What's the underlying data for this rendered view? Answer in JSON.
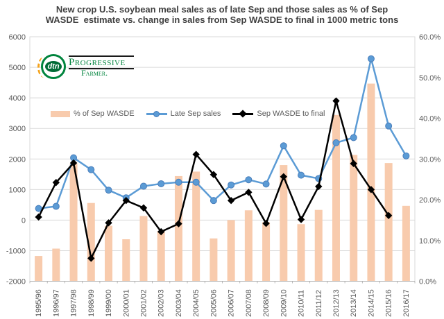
{
  "title": {
    "text": "New crop U.S. soybean meal sales as of late Sep and those sales as % of Sep WASDE  estimate vs. change in sales from Sep WASDE to final in 1000 metric tons"
  },
  "logo": {
    "circle_text": "dtn",
    "brand_top": "Progressive",
    "brand_bottom": "Farmer."
  },
  "legend": [
    {
      "label": "% of Sep WASDE",
      "swatch": "bar"
    },
    {
      "label": "Late Sep sales",
      "swatch": "line-circle"
    },
    {
      "label": "Sep WASDE to final",
      "swatch": "line-diamond"
    }
  ],
  "colors": {
    "bar": "#F8CBAD",
    "blue_line": "#5B9BD5",
    "blue_marker_edge": "#4A7EBB",
    "black_line": "#000000",
    "grid": "#D9D9D9",
    "axis_line": "#ABABAB",
    "axis_text": "#595959",
    "title_text": "#404040",
    "logo_green": "#00843D",
    "logo_orange": "#F5A31C"
  },
  "chart_data": {
    "type": "combo-bar-line",
    "title": "New crop U.S. soybean meal sales as of late Sep and those sales as % of Sep WASDE  estimate vs. change in sales from Sep WASDE to final in 1000 metric tons",
    "categories": [
      "1995/96",
      "1996/97",
      "1997/98",
      "1998/99",
      "1999/00",
      "2000/01",
      "2001/02",
      "2002/03",
      "2003/04",
      "2004/05",
      "2005/06",
      "2006/07",
      "2007/08",
      "2008/09",
      "2009/10",
      "2010/11",
      "2011/12",
      "2012/13",
      "2013/14",
      "2014/15",
      "2015/16",
      "2016/17"
    ],
    "series": [
      {
        "name": "% of Sep WASDE",
        "type": "bar",
        "axis": "right",
        "color": "#F8CBAD",
        "values": [
          6.2,
          8.0,
          28.9,
          19.2,
          13.6,
          10.3,
          16.0,
          12.3,
          25.8,
          26.9,
          10.5,
          15.0,
          17.4,
          14.5,
          28.5,
          14.0,
          17.5,
          40.8,
          31.0,
          48.5,
          29.0,
          18.5
        ]
      },
      {
        "name": "Late Sep sales",
        "type": "line",
        "marker": "circle",
        "axis": "left",
        "color": "#5B9BD5",
        "values": [
          380,
          450,
          2040,
          1650,
          980,
          730,
          1110,
          1190,
          1240,
          1240,
          640,
          1150,
          1320,
          1180,
          2430,
          1470,
          1360,
          2530,
          2700,
          5280,
          3080,
          2100
        ]
      },
      {
        "name": "Sep WASDE to final",
        "type": "line",
        "marker": "diamond",
        "axis": "left",
        "color": "#000000",
        "values": [
          100,
          1230,
          1870,
          -1250,
          -90,
          640,
          400,
          -380,
          -120,
          2150,
          1490,
          640,
          910,
          -110,
          1420,
          20,
          1100,
          3900,
          1850,
          1000,
          150,
          null
        ]
      }
    ],
    "left_axis": {
      "min": -2000,
      "max": 6000,
      "step": 1000,
      "ticks": [
        6000,
        5000,
        4000,
        3000,
        2000,
        1000,
        0,
        -1000,
        -2000
      ],
      "tick_labels": [
        "6000",
        "5000",
        "4000",
        "3000",
        "2000",
        "1000",
        "0",
        "-1000",
        "-2000"
      ]
    },
    "right_axis": {
      "min": 0,
      "max": 60,
      "step": 10,
      "ticks": [
        60,
        50,
        40,
        30,
        20,
        10,
        0
      ],
      "tick_labels": [
        "60.0%",
        "50.0%",
        "40.0%",
        "30.0%",
        "20.0%",
        "10.0%",
        "0.0%"
      ]
    },
    "grid": true,
    "legend_position": "inside-top-left",
    "x_tick_label_rotation": -90,
    "unit": "1000 metric tons"
  }
}
